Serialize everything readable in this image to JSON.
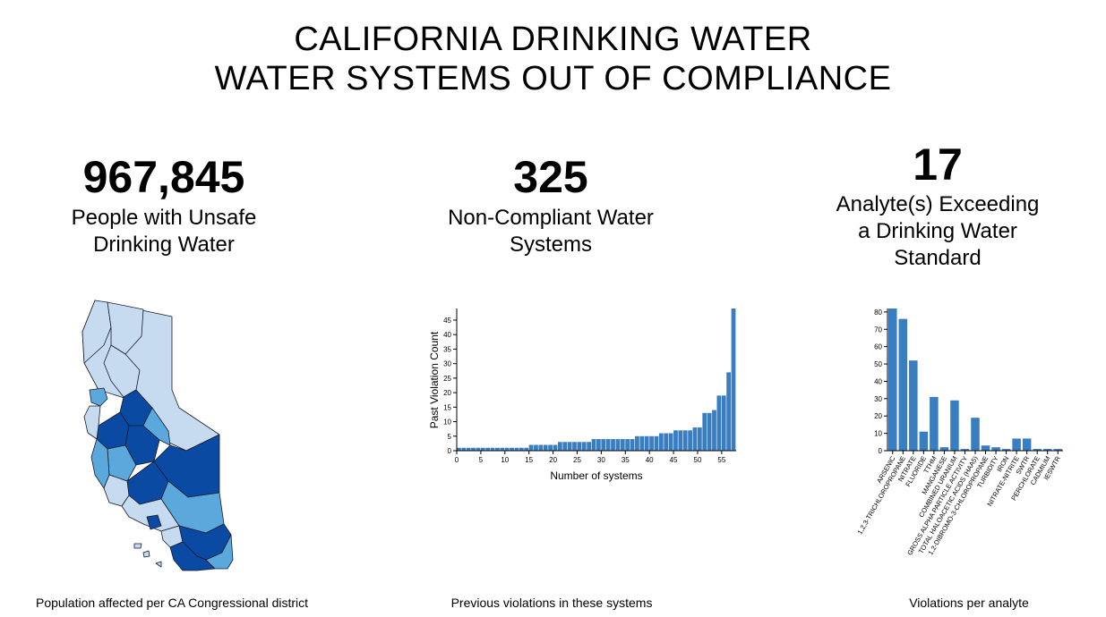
{
  "header": {
    "line1": "CALIFORNIA DRINKING WATER",
    "line2": "WATER SYSTEMS OUT OF COMPLIANCE"
  },
  "stats": [
    {
      "value": "967,845",
      "label_line1": "People with Unsafe",
      "label_line2": "Drinking Water",
      "label_line3": ""
    },
    {
      "value": "325",
      "label_line1": "Non-Compliant Water",
      "label_line2": "Systems",
      "label_line3": ""
    },
    {
      "value": "17",
      "label_line1": "Analyte(s) Exceeding",
      "label_line2": "a Drinking Water",
      "label_line3": "Standard"
    }
  ],
  "captions": {
    "map": "Population affected per CA Congressional district",
    "hist": "Previous violations in these systems",
    "analyte": "Violations per analyte"
  },
  "colors": {
    "bar": "#3a7ec2",
    "map_light": "#c6dbef",
    "map_mid": "#5aa8dc",
    "map_dark": "#0a4aa3",
    "map_stroke": "#1a1a2e"
  },
  "chart_data": [
    {
      "type": "map",
      "title": "Population affected per CA Congressional district",
      "regions": [
        "CA Congressional districts"
      ]
    },
    {
      "type": "bar",
      "title": "Previous violations in these systems",
      "xlabel": "Number of systems",
      "ylabel": "Past Violation Count",
      "x_ticks": [
        0,
        5,
        10,
        15,
        20,
        25,
        30,
        35,
        40,
        45,
        50,
        55
      ],
      "y_ticks": [
        0,
        5,
        10,
        15,
        20,
        25,
        30,
        35,
        40,
        45
      ],
      "xlim": [
        0,
        58
      ],
      "ylim": [
        0,
        49
      ],
      "values": [
        1,
        1,
        1,
        1,
        1,
        1,
        1,
        1,
        1,
        1,
        1,
        1,
        1,
        1,
        1,
        2,
        2,
        2,
        2,
        2,
        2,
        3,
        3,
        3,
        3,
        3,
        3,
        3,
        4,
        4,
        4,
        4,
        4,
        4,
        4,
        4,
        4,
        5,
        5,
        5,
        5,
        5,
        6,
        6,
        6,
        7,
        7,
        7,
        7,
        8,
        8,
        13,
        13,
        14,
        19,
        19,
        27,
        49
      ]
    },
    {
      "type": "bar",
      "title": "Violations per analyte",
      "xlabel": "",
      "ylabel": "",
      "y_ticks": [
        0,
        10,
        20,
        30,
        40,
        50,
        60,
        70,
        80
      ],
      "ylim": [
        0,
        82
      ],
      "categories": [
        "ARSENIC",
        "1,2,3-TRICHLOROPROPANE",
        "NITRATE",
        "FLUORIDE",
        "TTHM",
        "MANGANESE",
        "COMBINED URANIUM",
        "GROSS ALPHA PARTICLE ACTIVITY",
        "TOTAL HALOACETIC ACIDS (HAA5)",
        "1,2-DIBROMO-3-CHLOROPROPANE",
        "TURBIDITY",
        "IRON",
        "NITRATE-NITRITE",
        "SWTR",
        "PERCHLORATE",
        "CADMIUM",
        "IESWTR"
      ],
      "values": [
        82,
        76,
        52,
        11,
        31,
        2,
        29,
        1,
        19,
        3,
        2,
        1,
        7,
        7,
        1,
        1,
        1
      ]
    }
  ]
}
